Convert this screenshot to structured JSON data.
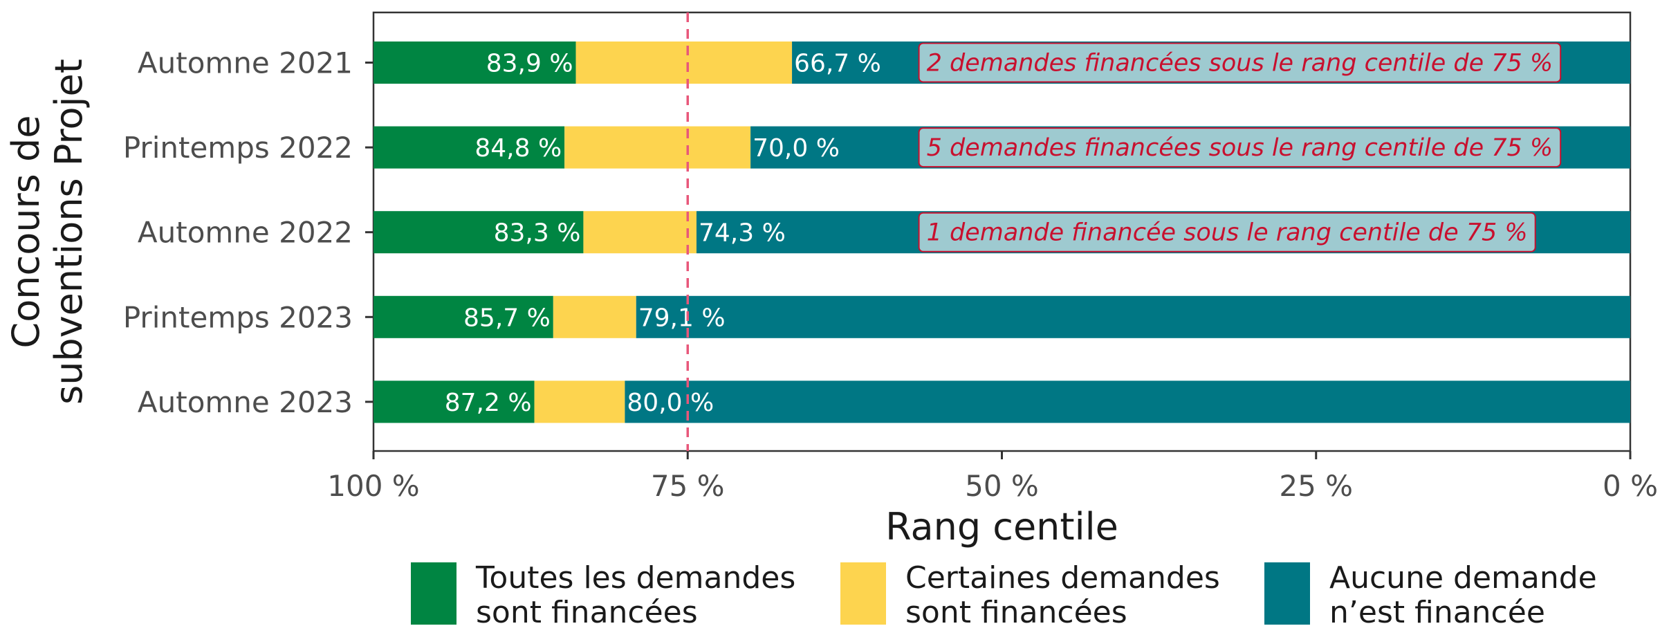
{
  "chart_data": {
    "type": "bar",
    "orientation": "horizontal",
    "stacked": true,
    "categories": [
      "Automne 2021",
      "Printemps 2022",
      "Automne 2022",
      "Printemps 2023",
      "Automne 2023"
    ],
    "series": [
      {
        "name": "Toutes les demandes sont financées",
        "color": "#008542",
        "start": [
          100,
          100,
          100,
          100,
          100
        ],
        "end": [
          83.9,
          84.8,
          83.3,
          85.7,
          87.2
        ]
      },
      {
        "name": "Certaines demandes sont financées",
        "color": "#fdd44f",
        "start": [
          83.9,
          84.8,
          83.3,
          85.7,
          87.2
        ],
        "end": [
          66.7,
          70.0,
          74.3,
          79.1,
          80.0
        ]
      },
      {
        "name": "Aucune demande n’est financée",
        "color": "#007784",
        "start": [
          66.7,
          70.0,
          74.3,
          79.1,
          80.0
        ],
        "end": [
          0,
          0,
          0,
          0,
          0
        ]
      }
    ],
    "data_labels": {
      "green": [
        "83,9 %",
        "84,8 %",
        "83,3 %",
        "85,7 %",
        "87,2 %"
      ],
      "teal": [
        "66,7 %",
        "70,0 %",
        "74,3 %",
        "79,1 %",
        "80,0 %"
      ]
    },
    "annotations": [
      {
        "category": "Automne 2021",
        "text": "2 demandes financées sous le rang centile de 75 %"
      },
      {
        "category": "Printemps 2022",
        "text": "5 demandes financées sous le rang centile de 75 %"
      },
      {
        "category": "Automne 2022",
        "text": "1 demande financée sous le rang centile de 75 %"
      }
    ],
    "annotation_style": {
      "fill": "#9ecad0",
      "border": "#c8102e",
      "text_color": "#c8102e"
    },
    "reference_line": {
      "value": 75,
      "color": "#e8577a",
      "style": "dashed"
    },
    "x_axis": {
      "title": "Rang centile",
      "range": [
        100,
        0
      ],
      "reversed": true,
      "ticks": [
        100,
        75,
        50,
        25,
        0
      ],
      "tick_labels": [
        "100 %",
        "75 %",
        "50 %",
        "25 %",
        "0 %"
      ]
    },
    "y_axis": {
      "title_lines": [
        "Concours de",
        "subventions Projet"
      ]
    },
    "legend": {
      "placement": "bottom",
      "items": [
        {
          "lines": [
            "Toutes les demandes",
            "sont financées"
          ],
          "color": "#008542"
        },
        {
          "lines": [
            "Certaines demandes",
            "sont financées"
          ],
          "color": "#fdd44f"
        },
        {
          "lines": [
            "Aucune demande",
            "n’est financée"
          ],
          "color": "#007784"
        }
      ]
    },
    "grid": false
  }
}
